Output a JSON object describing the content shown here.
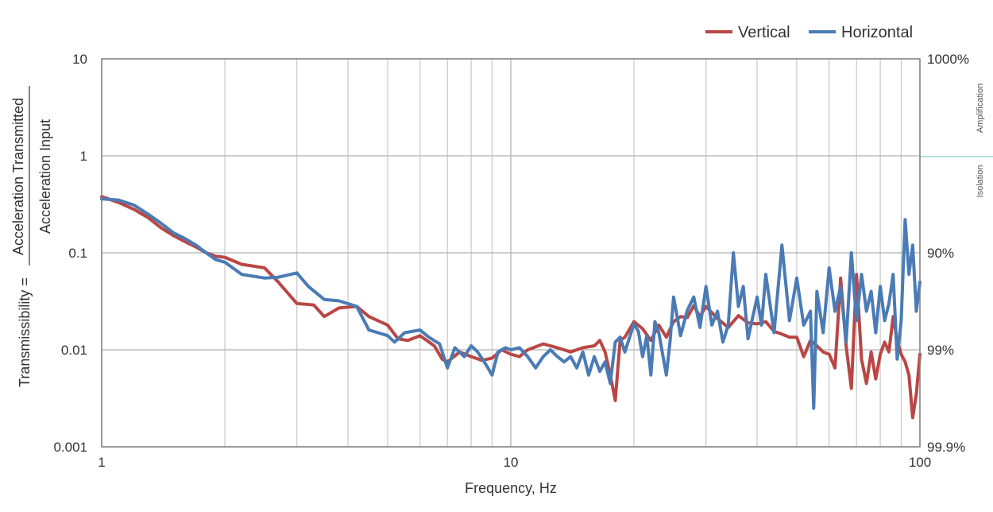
{
  "chart_data": {
    "type": "line",
    "xlabel": "Frequency, Hz",
    "ylabel_top": "Acceleration Transmitted",
    "ylabel_bottom": "Acceleration Input",
    "ylabel_prefix": "Transmissibility =",
    "x_scale": "log",
    "y_scale": "log",
    "xlim": [
      1,
      100
    ],
    "ylim": [
      0.001,
      10
    ],
    "x_ticks": [
      {
        "value": 1,
        "label": "1"
      },
      {
        "value": 10,
        "label": "10"
      },
      {
        "value": 100,
        "label": "100"
      }
    ],
    "y_ticks": [
      {
        "value": 10,
        "label": "10"
      },
      {
        "value": 1,
        "label": "1"
      },
      {
        "value": 0.1,
        "label": "0.1"
      },
      {
        "value": 0.01,
        "label": "0.01"
      },
      {
        "value": 0.001,
        "label": "0.001"
      }
    ],
    "right_ticks": [
      {
        "value": 10,
        "label": "1000%"
      },
      {
        "value": 0.1,
        "label": "90%"
      },
      {
        "value": 0.01,
        "label": "99%"
      },
      {
        "value": 0.001,
        "label": "99.9%"
      }
    ],
    "right_side_labels": {
      "upper": "Amplification",
      "lower": "Isolation"
    },
    "grid": true,
    "legend_position": "top-right",
    "series": [
      {
        "name": "Vertical",
        "color": "#b94745",
        "points": [
          [
            1.0,
            0.38
          ],
          [
            1.1,
            0.33
          ],
          [
            1.2,
            0.28
          ],
          [
            1.3,
            0.23
          ],
          [
            1.4,
            0.18
          ],
          [
            1.5,
            0.15
          ],
          [
            1.6,
            0.13
          ],
          [
            1.7,
            0.115
          ],
          [
            1.8,
            0.1
          ],
          [
            1.9,
            0.092
          ],
          [
            2.0,
            0.09
          ],
          [
            2.2,
            0.076
          ],
          [
            2.5,
            0.07
          ],
          [
            2.7,
            0.05
          ],
          [
            3.0,
            0.03
          ],
          [
            3.3,
            0.029
          ],
          [
            3.5,
            0.022
          ],
          [
            3.8,
            0.027
          ],
          [
            4.2,
            0.028
          ],
          [
            4.5,
            0.022
          ],
          [
            5.0,
            0.018
          ],
          [
            5.3,
            0.013
          ],
          [
            5.6,
            0.0125
          ],
          [
            6.0,
            0.014
          ],
          [
            6.5,
            0.011
          ],
          [
            6.8,
            0.008
          ],
          [
            7.0,
            0.0075
          ],
          [
            7.5,
            0.0095
          ],
          [
            8.0,
            0.0085
          ],
          [
            8.5,
            0.0078
          ],
          [
            9.0,
            0.0082
          ],
          [
            9.5,
            0.01
          ],
          [
            10.0,
            0.009
          ],
          [
            10.5,
            0.0085
          ],
          [
            11.0,
            0.01
          ],
          [
            12.0,
            0.0115
          ],
          [
            13.0,
            0.0105
          ],
          [
            14.0,
            0.0095
          ],
          [
            15.0,
            0.0105
          ],
          [
            16.0,
            0.011
          ],
          [
            16.5,
            0.0125
          ],
          [
            17.0,
            0.0095
          ],
          [
            17.5,
            0.0055
          ],
          [
            18.0,
            0.003
          ],
          [
            18.5,
            0.0125
          ],
          [
            19.0,
            0.0135
          ],
          [
            20.0,
            0.0195
          ],
          [
            21.0,
            0.0165
          ],
          [
            22.0,
            0.0125
          ],
          [
            23.0,
            0.018
          ],
          [
            24.0,
            0.0135
          ],
          [
            25.0,
            0.0195
          ],
          [
            26.0,
            0.022
          ],
          [
            27.0,
            0.0215
          ],
          [
            28.0,
            0.0285
          ],
          [
            29.0,
            0.022
          ],
          [
            30.0,
            0.028
          ],
          [
            32.0,
            0.021
          ],
          [
            34.0,
            0.017
          ],
          [
            36.0,
            0.0225
          ],
          [
            38.0,
            0.019
          ],
          [
            40.0,
            0.0185
          ],
          [
            42.0,
            0.0195
          ],
          [
            44.0,
            0.0155
          ],
          [
            46.0,
            0.0145
          ],
          [
            48.0,
            0.0135
          ],
          [
            50.0,
            0.0135
          ],
          [
            52.0,
            0.0085
          ],
          [
            54.0,
            0.0125
          ],
          [
            56.0,
            0.011
          ],
          [
            58.0,
            0.0095
          ],
          [
            60.0,
            0.009
          ],
          [
            62.0,
            0.0065
          ],
          [
            64.0,
            0.055
          ],
          [
            66.0,
            0.011
          ],
          [
            68.0,
            0.004
          ],
          [
            70.0,
            0.06
          ],
          [
            72.0,
            0.008
          ],
          [
            74.0,
            0.0045
          ],
          [
            76.0,
            0.0095
          ],
          [
            78.0,
            0.005
          ],
          [
            80.0,
            0.009
          ],
          [
            82.0,
            0.012
          ],
          [
            84.0,
            0.0095
          ],
          [
            86.0,
            0.022
          ],
          [
            88.0,
            0.0125
          ],
          [
            90.0,
            0.009
          ],
          [
            92.0,
            0.0075
          ],
          [
            94.0,
            0.0055
          ],
          [
            96.0,
            0.002
          ],
          [
            98.0,
            0.0035
          ],
          [
            100.0,
            0.009
          ]
        ]
      },
      {
        "name": "Horizontal",
        "color": "#4a7bb5",
        "points": [
          [
            1.0,
            0.36
          ],
          [
            1.1,
            0.35
          ],
          [
            1.2,
            0.31
          ],
          [
            1.3,
            0.25
          ],
          [
            1.4,
            0.2
          ],
          [
            1.5,
            0.16
          ],
          [
            1.6,
            0.14
          ],
          [
            1.7,
            0.12
          ],
          [
            1.8,
            0.1
          ],
          [
            1.9,
            0.085
          ],
          [
            2.0,
            0.08
          ],
          [
            2.2,
            0.06
          ],
          [
            2.5,
            0.055
          ],
          [
            2.7,
            0.056
          ],
          [
            3.0,
            0.062
          ],
          [
            3.2,
            0.045
          ],
          [
            3.5,
            0.033
          ],
          [
            3.8,
            0.032
          ],
          [
            4.2,
            0.028
          ],
          [
            4.5,
            0.016
          ],
          [
            5.0,
            0.014
          ],
          [
            5.2,
            0.012
          ],
          [
            5.5,
            0.015
          ],
          [
            6.0,
            0.016
          ],
          [
            6.3,
            0.0135
          ],
          [
            6.7,
            0.0115
          ],
          [
            7.0,
            0.0065
          ],
          [
            7.3,
            0.0105
          ],
          [
            7.7,
            0.0085
          ],
          [
            8.0,
            0.011
          ],
          [
            8.3,
            0.0095
          ],
          [
            8.7,
            0.007
          ],
          [
            9.0,
            0.0055
          ],
          [
            9.3,
            0.0095
          ],
          [
            9.7,
            0.0105
          ],
          [
            10.0,
            0.01
          ],
          [
            10.5,
            0.0105
          ],
          [
            11.0,
            0.0085
          ],
          [
            11.5,
            0.0065
          ],
          [
            12.0,
            0.0085
          ],
          [
            12.5,
            0.01
          ],
          [
            13.0,
            0.0085
          ],
          [
            13.5,
            0.0075
          ],
          [
            14.0,
            0.0085
          ],
          [
            14.5,
            0.0065
          ],
          [
            15.0,
            0.0095
          ],
          [
            15.5,
            0.0055
          ],
          [
            16.0,
            0.0085
          ],
          [
            16.5,
            0.006
          ],
          [
            17.0,
            0.0075
          ],
          [
            17.5,
            0.0045
          ],
          [
            18.0,
            0.012
          ],
          [
            18.5,
            0.0135
          ],
          [
            19.0,
            0.0095
          ],
          [
            20.0,
            0.0185
          ],
          [
            20.5,
            0.0155
          ],
          [
            21.0,
            0.0085
          ],
          [
            21.5,
            0.014
          ],
          [
            22.0,
            0.0055
          ],
          [
            22.5,
            0.0195
          ],
          [
            23.0,
            0.015
          ],
          [
            24.0,
            0.0055
          ],
          [
            24.5,
            0.012
          ],
          [
            25.0,
            0.035
          ],
          [
            26.0,
            0.014
          ],
          [
            27.0,
            0.0255
          ],
          [
            28.0,
            0.035
          ],
          [
            29.0,
            0.017
          ],
          [
            30.0,
            0.045
          ],
          [
            31.0,
            0.018
          ],
          [
            32.0,
            0.025
          ],
          [
            33.0,
            0.012
          ],
          [
            34.0,
            0.018
          ],
          [
            35.0,
            0.1
          ],
          [
            36.0,
            0.028
          ],
          [
            37.0,
            0.045
          ],
          [
            38.0,
            0.013
          ],
          [
            40.0,
            0.035
          ],
          [
            41.0,
            0.018
          ],
          [
            42.0,
            0.06
          ],
          [
            44.0,
            0.015
          ],
          [
            46.0,
            0.12
          ],
          [
            48.0,
            0.02
          ],
          [
            50.0,
            0.055
          ],
          [
            52.0,
            0.018
          ],
          [
            54.0,
            0.025
          ],
          [
            55.0,
            0.0025
          ],
          [
            56.0,
            0.04
          ],
          [
            58.0,
            0.015
          ],
          [
            60.0,
            0.07
          ],
          [
            62.0,
            0.025
          ],
          [
            64.0,
            0.045
          ],
          [
            66.0,
            0.012
          ],
          [
            68.0,
            0.1
          ],
          [
            70.0,
            0.02
          ],
          [
            72.0,
            0.06
          ],
          [
            74.0,
            0.025
          ],
          [
            76.0,
            0.04
          ],
          [
            78.0,
            0.015
          ],
          [
            80.0,
            0.045
          ],
          [
            82.0,
            0.02
          ],
          [
            84.0,
            0.03
          ],
          [
            86.0,
            0.06
          ],
          [
            88.0,
            0.008
          ],
          [
            90.0,
            0.02
          ],
          [
            92.0,
            0.22
          ],
          [
            94.0,
            0.06
          ],
          [
            96.0,
            0.12
          ],
          [
            98.0,
            0.025
          ],
          [
            100.0,
            0.05
          ]
        ]
      }
    ]
  }
}
